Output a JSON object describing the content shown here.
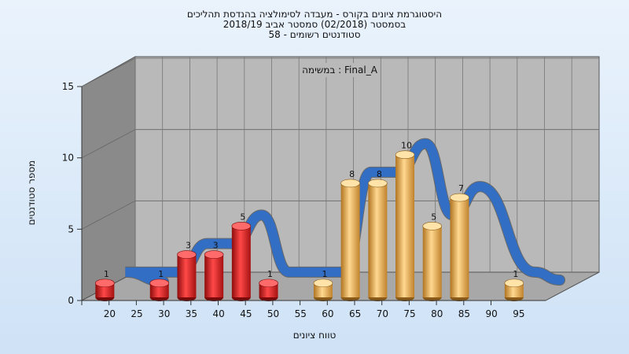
{
  "chart_data": {
    "type": "bar",
    "title_lines": [
      "היסטוגרמת ציונים בקורס - מעבדה לסימולציה בהנדסת תהליכים",
      "בסמסטר  (02/2018)  סמסטר אביב 2018/19",
      "סטודנטים רשומים - 58"
    ],
    "annotation": "במשימה : Final_A",
    "xlabel": "טווח ציונים",
    "ylabel": "מספר סטודנטים",
    "y_ticks": [
      0,
      5,
      10,
      15
    ],
    "ylim": [
      0,
      15
    ],
    "x_tick_labels": [
      "20",
      "25",
      "30",
      "35",
      "40",
      "45",
      "50",
      "55",
      "60",
      "65",
      "70",
      "75",
      "80",
      "85",
      "90",
      "95"
    ],
    "categories": [
      "20",
      "30",
      "35",
      "40",
      "45",
      "50",
      "60",
      "65",
      "70",
      "75",
      "80",
      "85",
      "95"
    ],
    "values": [
      1,
      1,
      3,
      3,
      5,
      1,
      1,
      8,
      8,
      10,
      5,
      7,
      1
    ],
    "bar_group": [
      "fail",
      "fail",
      "fail",
      "fail",
      "fail",
      "fail",
      "pass",
      "pass",
      "pass",
      "pass",
      "pass",
      "pass",
      "pass"
    ],
    "data_labels": [
      "1",
      "1",
      "3",
      "3",
      "5",
      "1",
      "1",
      "8",
      "8",
      "10",
      "5",
      "7",
      "1"
    ],
    "colors": {
      "fail": "#e02020",
      "pass": "#e8a838",
      "curve_blue": "#2f6fc8",
      "curve_gray": "#606060",
      "wall": "#8a8a8a",
      "back_wall": "#b9b9b9",
      "floor": "#a8a8a8"
    },
    "grid": true
  }
}
